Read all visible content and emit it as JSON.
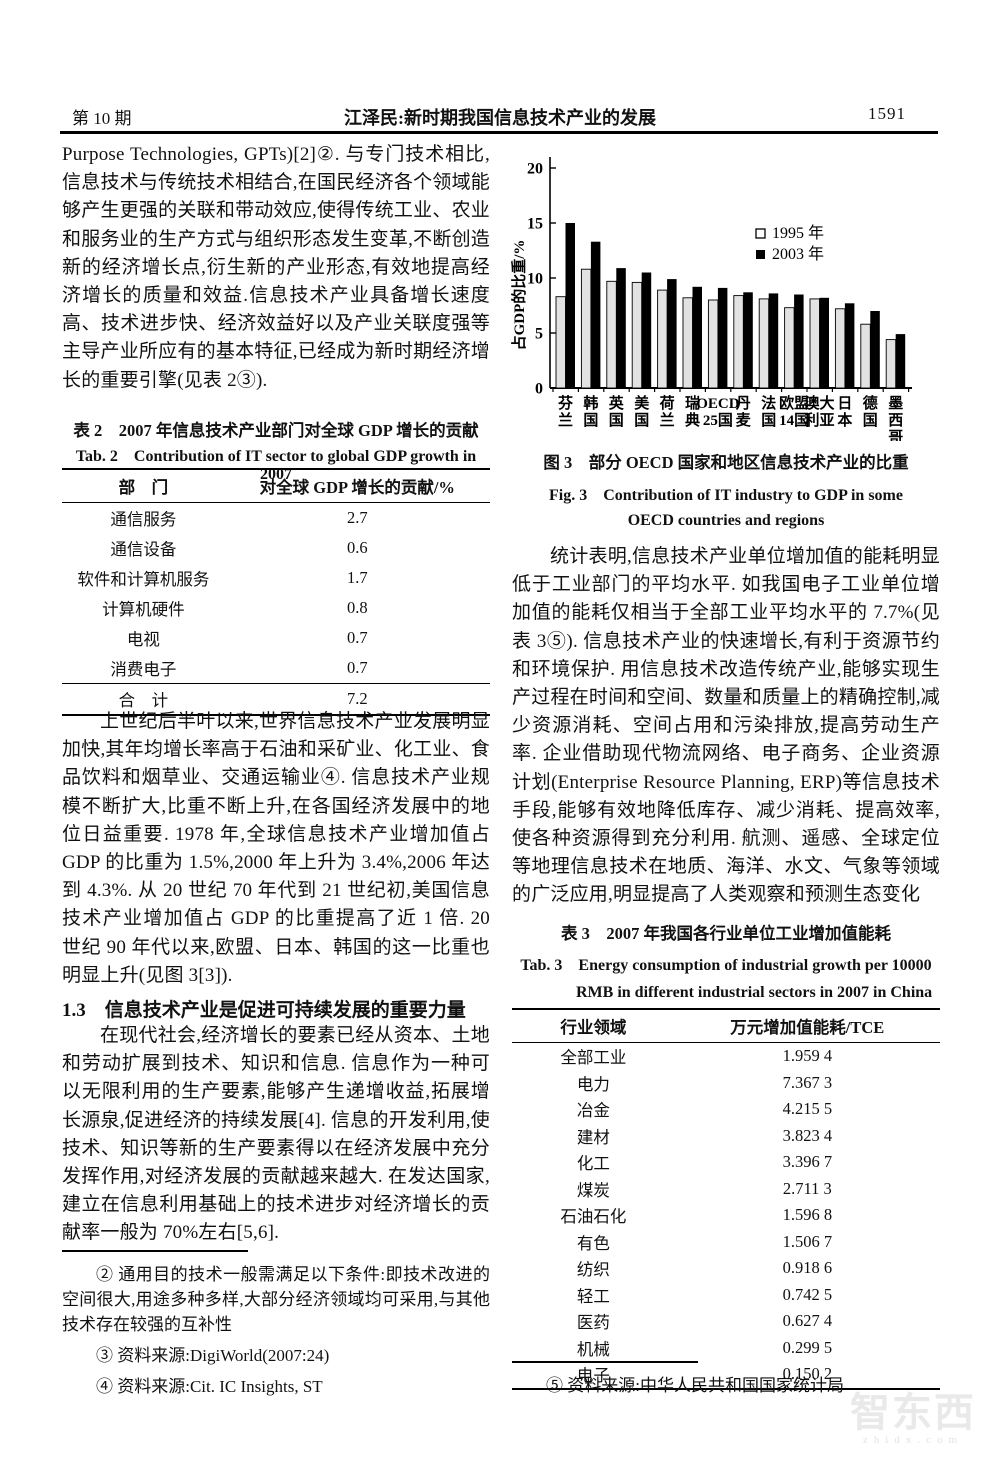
{
  "header": {
    "issue": "第 10 期",
    "title": "江泽民:新时期我国信息技术产业的发展",
    "page_number": "1591"
  },
  "left_column": {
    "paragraph1": "Purpose Technologies, GPTs)[2]②. 与专门技术相比,信息技术与传统技术相结合,在国民经济各个领域能够产生更强的关联和带动效应,使得传统工业、农业和服务业的生产方式与组织形态发生变革,不断创造新的经济增长点,衍生新的产业形态,有效地提高经济增长的质量和效益.信息技术产业具备增长速度高、技术进步快、经济效益好以及产业关联度强等主导产业所应有的基本特征,已经成为新时期经济增长的重要引擎(见表 2③).",
    "table2": {
      "caption_zh": "表 2　2007 年信息技术产业部门对全球 GDP 增长的贡献",
      "caption_en": "Tab. 2　Contribution of IT sector to global GDP growth in 2007",
      "col_headers": [
        "部　门",
        "对全球 GDP 增长的贡献/%"
      ],
      "rows": [
        [
          "通信服务",
          "2.7"
        ],
        [
          "通信设备",
          "0.6"
        ],
        [
          "软件和计算机服务",
          "1.7"
        ],
        [
          "计算机硬件",
          "0.8"
        ],
        [
          "电视",
          "0.7"
        ],
        [
          "消费电子",
          "0.7"
        ]
      ],
      "total_row": [
        "合　计",
        "7.2"
      ]
    },
    "paragraph2": "上世纪后半叶以来,世界信息技术产业发展明显加快,其年均增长率高于石油和采矿业、化工业、食品饮料和烟草业、交通运输业④. 信息技术产业规模不断扩大,比重不断上升,在各国经济发展中的地位日益重要. 1978 年,全球信息技术产业增加值占 GDP 的比重为 1.5%,2000 年上升为 3.4%,2006 年达到 4.3%. 从 20 世纪 70 年代到 21 世纪初,美国信息技术产业增加值占 GDP 的比重提高了近 1 倍. 20 世纪 90 年代以来,欧盟、日本、韩国的这一比重也明显上升(见图 3[3]).",
    "section_heading": "1.3　信息技术产业是促进可持续发展的重要力量",
    "paragraph3": "在现代社会,经济增长的要素已经从资本、土地和劳动扩展到技术、知识和信息. 信息作为一种可以无限利用的生产要素,能够产生递增收益,拓展增长源泉,促进经济的持续发展[4]. 信息的开发利用,使技术、知识等新的生产要素得以在经济发展中充分发挥作用,对经济发展的贡献越来越大. 在发达国家,建立在信息利用基础上的技术进步对经济增长的贡献率一般为 70%左右[5,6].",
    "footnotes": [
      "② 通用目的技术一般需满足以下条件:即技术改进的空间很大,用途多种多样,大部分经济领域均可采用,与其他技术存在较强的互补性",
      "③ 资料来源:DigiWorld(2007:24)",
      "④ 资料来源:Cit. IC Insights, ST"
    ]
  },
  "right_column": {
    "figure_caption_zh": "图 3　部分 OECD 国家和地区信息技术产业的比重",
    "figure_caption_en1": "Fig. 3　Contribution of IT industry to GDP in some",
    "figure_caption_en2": "OECD countries and regions",
    "paragraph1": "统计表明,信息技术产业单位增加值的能耗明显低于工业部门的平均水平. 如我国电子工业单位增加值的能耗仅相当于全部工业平均水平的 7.7%(见表 3⑤). 信息技术产业的快速增长,有利于资源节约和环境保护. 用信息技术改造传统产业,能够实现生产过程在时间和空间、数量和质量上的精确控制,减少资源消耗、空间占用和污染排放,提高劳动生产率. 企业借助现代物流网络、电子商务、企业资源计划(Enterprise Resource Planning, ERP)等信息技术手段,能够有效地降低库存、减少消耗、提高效率,使各种资源得到充分利用. 航测、遥感、全球定位等地理信息技术在地质、海洋、水文、气象等领域的广泛应用,明显提高了人类观察和预测生态变化",
    "table3": {
      "caption_zh": "表 3　2007 年我国各行业单位工业增加值能耗",
      "caption_en1": "Tab. 3　Energy consumption of industrial growth per 10000",
      "caption_en2": "RMB in different industrial sectors in 2007 in China",
      "col_headers": [
        "行业领域",
        "万元增加值能耗/TCE"
      ],
      "rows": [
        [
          "全部工业",
          "1.959 4"
        ],
        [
          "电力",
          "7.367 3"
        ],
        [
          "冶金",
          "4.215 5"
        ],
        [
          "建材",
          "3.823 4"
        ],
        [
          "化工",
          "3.396 7"
        ],
        [
          "煤炭",
          "2.711 3"
        ],
        [
          "石油石化",
          "1.596 8"
        ],
        [
          "有色",
          "1.506 7"
        ],
        [
          "纺织",
          "0.918 6"
        ],
        [
          "轻工",
          "0.742 5"
        ],
        [
          "医药",
          "0.627 4"
        ],
        [
          "机械",
          "0.299 5"
        ],
        [
          "电子",
          "0.150 2"
        ]
      ]
    },
    "footnote": "⑤ 资料来源:中华人民共和国国家统计局"
  },
  "watermark": {
    "logo_text": "智东西",
    "sub_text": "zhidx.com"
  },
  "chart_data": {
    "type": "bar",
    "title": "",
    "xlabel": "",
    "ylabel": "占GDP的比重/%",
    "ylim": [
      0,
      20
    ],
    "yticks": [
      0,
      5,
      10,
      15,
      20
    ],
    "grid": false,
    "legend_position": "upper-right-inside",
    "categories": [
      "芬兰",
      "韩国",
      "英国",
      "美国",
      "荷兰",
      "瑞典",
      "OECD25国",
      "丹麦",
      "法国",
      "欧盟14国",
      "澳大利亚",
      "日本",
      "德国",
      "墨西哥"
    ],
    "category_label_lines": [
      [
        "芬",
        "兰"
      ],
      [
        "韩",
        "国"
      ],
      [
        "英",
        "国"
      ],
      [
        "美",
        "国"
      ],
      [
        "荷",
        "兰"
      ],
      [
        "瑞",
        "典"
      ],
      [
        "OECD",
        "25国"
      ],
      [
        "丹",
        "麦"
      ],
      [
        "法",
        "国"
      ],
      [
        "欧盟",
        "14国"
      ],
      [
        "澳大",
        "利亚"
      ],
      [
        "日",
        "本"
      ],
      [
        "德",
        "国"
      ],
      [
        "墨",
        "西",
        "哥"
      ]
    ],
    "series": [
      {
        "name": "1995 年",
        "style": "light",
        "values": [
          8.3,
          10.8,
          9.7,
          9.6,
          8.9,
          8.2,
          8.0,
          8.4,
          8.1,
          7.3,
          8.1,
          7.2,
          5.8,
          4.4
        ]
      },
      {
        "name": "2003 年",
        "style": "dark",
        "values": [
          15.0,
          13.3,
          10.9,
          10.5,
          9.9,
          9.2,
          9.1,
          8.7,
          8.6,
          8.5,
          8.2,
          7.7,
          7.0,
          4.9
        ]
      }
    ]
  }
}
